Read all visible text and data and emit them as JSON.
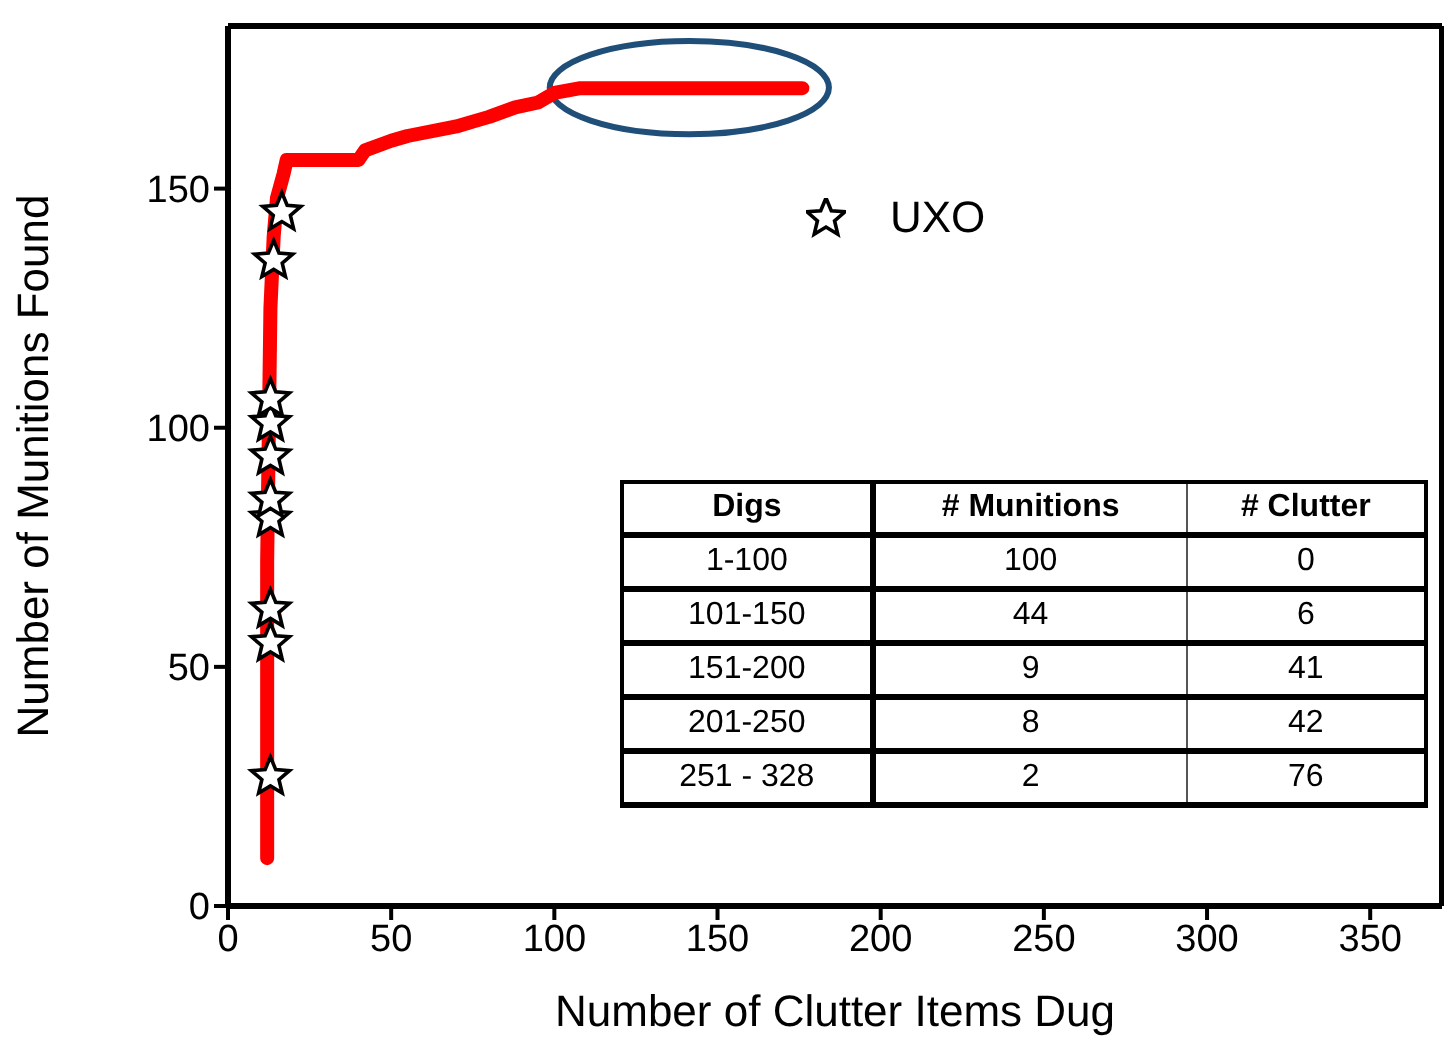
{
  "chart_data": [
    {
      "type": "line",
      "xlabel": "Number of Clutter Items Dug",
      "ylabel": "Number of Munitions Found",
      "xlim": [
        0,
        372
      ],
      "xticks": [
        0,
        50,
        100,
        150,
        200,
        250,
        300,
        350
      ],
      "ylim": [
        0,
        184
      ],
      "yticks": [
        0,
        50,
        100,
        150
      ],
      "grid": false,
      "legend": "top right",
      "line_style": "solid",
      "series": [
        {
          "type": "line",
          "color": "#ff0000",
          "marker": "none",
          "x": [
            12,
            12,
            13,
            14,
            15,
            17,
            18,
            40,
            42,
            50,
            55,
            70,
            75,
            80,
            88,
            95,
            100,
            108,
            176
          ],
          "values": [
            10,
            72,
            125,
            140,
            148,
            153,
            156,
            156,
            158,
            160,
            161,
            163,
            164,
            165,
            167,
            168,
            170,
            171,
            171
          ]
        },
        {
          "type": "scatter",
          "name": "UXO",
          "color": "#000000",
          "marker": "star",
          "x": [
            13,
            13,
            13,
            13,
            13,
            13,
            13,
            13,
            14,
            16.5
          ],
          "values": [
            27,
            55,
            62,
            81,
            85,
            94,
            101,
            106,
            135,
            145
          ]
        }
      ]
    },
    {
      "type": "other",
      "xlabel": "Digs",
      "categories": [
        "1-100",
        "101-150",
        "151-200",
        "201-250",
        "251 - 328"
      ],
      "data_labels": true,
      "series": [
        {
          "name": "# Munitions",
          "values": [
            100,
            44,
            9,
            8,
            2
          ]
        },
        {
          "name": "# Clutter",
          "values": [
            0,
            6,
            41,
            42,
            76
          ]
        }
      ]
    }
  ]
}
